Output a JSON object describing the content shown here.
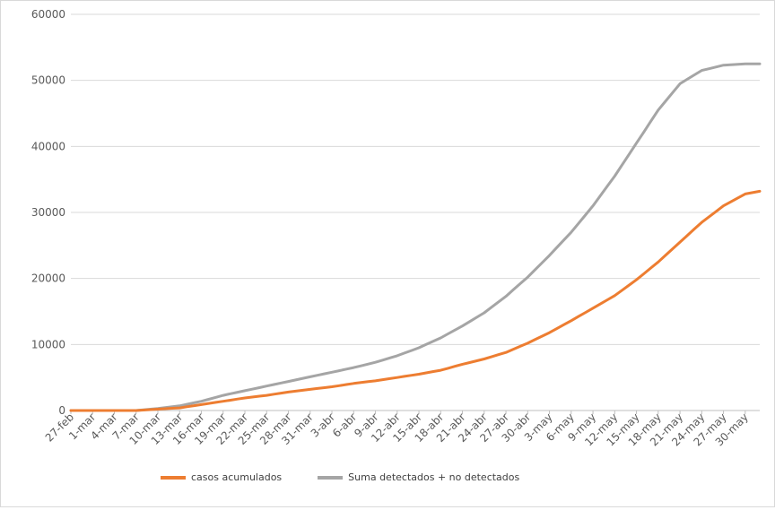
{
  "chart_data": {
    "type": "line",
    "title": "",
    "xlabel": "",
    "ylabel": "",
    "ylim": [
      0,
      60000
    ],
    "yticks": [
      0,
      10000,
      20000,
      30000,
      40000,
      50000,
      60000
    ],
    "grid": true,
    "legend_position": "bottom",
    "x_labels": [
      "27-feb",
      "1-mar",
      "4-mar",
      "7-mar",
      "10-mar",
      "13-mar",
      "16-mar",
      "19-mar",
      "22-mar",
      "25-mar",
      "28-mar",
      "31-mar",
      "3-abr",
      "6-abr",
      "9-abr",
      "12-abr",
      "15-abr",
      "18-abr",
      "21-abr",
      "24-abr",
      "27-abr",
      "30-abr",
      "3-may",
      "6-may",
      "9-may",
      "12-may",
      "15-may",
      "18-may",
      "21-may",
      "24-may",
      "27-may",
      "30-may"
    ],
    "x_label_step": 3,
    "num_points": 95,
    "series": [
      {
        "name": "casos acumulados",
        "color": "#ED7D31",
        "anchors": [
          [
            0,
            0
          ],
          [
            9,
            0
          ],
          [
            12,
            200
          ],
          [
            15,
            400
          ],
          [
            18,
            900
          ],
          [
            21,
            1400
          ],
          [
            24,
            1900
          ],
          [
            27,
            2300
          ],
          [
            30,
            2800
          ],
          [
            33,
            3200
          ],
          [
            36,
            3600
          ],
          [
            39,
            4100
          ],
          [
            42,
            4500
          ],
          [
            45,
            5000
          ],
          [
            48,
            5500
          ],
          [
            51,
            6100
          ],
          [
            54,
            7000
          ],
          [
            57,
            7800
          ],
          [
            60,
            8800
          ],
          [
            63,
            10200
          ],
          [
            66,
            11800
          ],
          [
            69,
            13600
          ],
          [
            72,
            15500
          ],
          [
            75,
            17400
          ],
          [
            78,
            19800
          ],
          [
            81,
            22500
          ],
          [
            84,
            25500
          ],
          [
            87,
            28500
          ],
          [
            90,
            31000
          ],
          [
            93,
            32800
          ],
          [
            95,
            33200
          ]
        ]
      },
      {
        "name": "Suma detectados + no detectados",
        "color": "#A5A5A5",
        "anchors": [
          [
            0,
            0
          ],
          [
            9,
            0
          ],
          [
            12,
            300
          ],
          [
            15,
            700
          ],
          [
            18,
            1400
          ],
          [
            21,
            2300
          ],
          [
            24,
            3000
          ],
          [
            27,
            3700
          ],
          [
            30,
            4400
          ],
          [
            33,
            5100
          ],
          [
            36,
            5800
          ],
          [
            39,
            6500
          ],
          [
            42,
            7300
          ],
          [
            45,
            8300
          ],
          [
            48,
            9500
          ],
          [
            51,
            11000
          ],
          [
            54,
            12800
          ],
          [
            57,
            14800
          ],
          [
            60,
            17300
          ],
          [
            63,
            20200
          ],
          [
            66,
            23500
          ],
          [
            69,
            27000
          ],
          [
            72,
            31000
          ],
          [
            75,
            35500
          ],
          [
            78,
            40500
          ],
          [
            81,
            45500
          ],
          [
            84,
            49500
          ],
          [
            87,
            51500
          ],
          [
            90,
            52300
          ],
          [
            93,
            52500
          ],
          [
            95,
            52500
          ]
        ]
      }
    ]
  },
  "legend": {
    "items": [
      {
        "label": "casos acumulados",
        "color": "#ED7D31"
      },
      {
        "label": "Suma detectados + no detectados",
        "color": "#A5A5A5"
      }
    ]
  }
}
